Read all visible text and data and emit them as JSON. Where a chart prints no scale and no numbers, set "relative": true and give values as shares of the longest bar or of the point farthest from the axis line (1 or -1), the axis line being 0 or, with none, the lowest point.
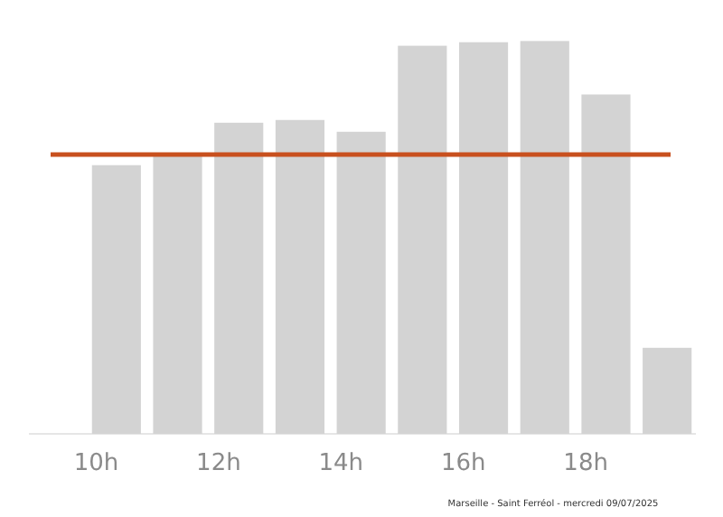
{
  "chart_data": {
    "type": "bar",
    "relative": true,
    "x": [
      10.33,
      11.33,
      12.33,
      13.33,
      14.33,
      15.33,
      16.33,
      17.33,
      18.33,
      19.33
    ],
    "values": [
      0.684,
      0.71,
      0.792,
      0.799,
      0.769,
      0.988,
      0.997,
      1,
      0.864,
      0.219
    ],
    "color": "#d3d3d3",
    "xlim": [
      8.9,
      19.8
    ],
    "xticks": [
      {
        "value": 10,
        "label": "10h"
      },
      {
        "value": 12,
        "label": "12h"
      },
      {
        "value": 14,
        "label": "14h"
      },
      {
        "value": 16,
        "label": "16h"
      },
      {
        "value": 18,
        "label": "18h"
      }
    ],
    "ref_lines": [
      {
        "axis": "y",
        "value": 0.711,
        "color": "#c8501e"
      }
    ],
    "grid": false,
    "annotations": [
      "Marseille - Saint Ferréol - mercredi 09/07/2025"
    ]
  }
}
